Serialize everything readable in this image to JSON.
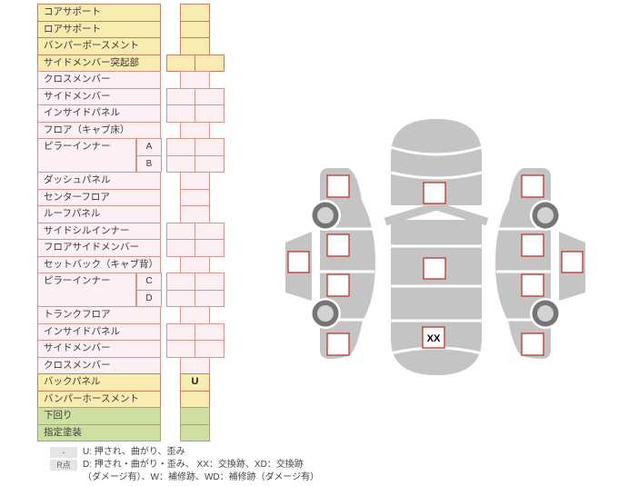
{
  "colors": {
    "row-yellow": "#f8ecb0",
    "row-pink": "#fdf0f2",
    "row-green": "#cfdfa2",
    "border-yellow": "#c57f62",
    "border-pink": "#d6948e",
    "border-green": "#aba578",
    "car-gray": "#c4c4c4",
    "wheel-dark": "#757575",
    "wheel-light": "#d2d2d2",
    "marker-red": "#bf4138"
  },
  "table": {
    "rows": [
      {
        "label": "コアサポート",
        "color": "yellow",
        "cells": "single",
        "value": ""
      },
      {
        "label": "ロアサポート",
        "color": "yellow",
        "cells": "single",
        "value": ""
      },
      {
        "label": "バンパーポースメント",
        "color": "yellow",
        "cells": "single",
        "value": ""
      },
      {
        "label": "サイドメンバー突起部",
        "color": "yellow",
        "cells": "double",
        "value": ""
      },
      {
        "label": "クロスメンバー",
        "color": "pink",
        "cells": "single",
        "value": ""
      },
      {
        "label": "サイドメンバー",
        "color": "pink",
        "cells": "double",
        "value": ""
      },
      {
        "label": "インサイドパネル",
        "color": "pink",
        "cells": "double",
        "value": ""
      },
      {
        "label": "フロア（キャブ床）",
        "color": "pink",
        "cells": "single",
        "value": ""
      },
      {
        "label": "ピラーインナー",
        "sub": "A",
        "span": 2,
        "color": "pink",
        "cells": "double",
        "value": ""
      },
      {
        "sub": "B",
        "color": "pink",
        "cells": "double",
        "value": ""
      },
      {
        "label": "ダッシュパネル",
        "color": "pink",
        "cells": "single",
        "value": ""
      },
      {
        "label": "センターフロア",
        "color": "pink",
        "cells": "single",
        "value": ""
      },
      {
        "label": "ルーフパネル",
        "color": "pink",
        "cells": "single",
        "value": ""
      },
      {
        "label": "サイドシルインナー",
        "color": "pink",
        "cells": "double",
        "value": ""
      },
      {
        "label": "フロアサイドメンバー",
        "color": "pink",
        "cells": "double",
        "value": ""
      },
      {
        "label": "セットバック（キャブ背）",
        "color": "pink",
        "cells": "single",
        "value": ""
      },
      {
        "label": "ピラーインナー",
        "sub": "C",
        "span": 2,
        "color": "pink",
        "cells": "double",
        "value": ""
      },
      {
        "sub": "D",
        "color": "pink",
        "cells": "double",
        "value": ""
      },
      {
        "label": "トランクフロア",
        "color": "pink",
        "cells": "single",
        "value": ""
      },
      {
        "label": "インサイドパネル",
        "color": "pink",
        "cells": "double",
        "value": ""
      },
      {
        "label": "サイドメンバー",
        "color": "pink",
        "cells": "double",
        "value": ""
      },
      {
        "label": "クロスメンバー",
        "color": "pink",
        "cells": "single",
        "value": ""
      },
      {
        "label": "バックパネル",
        "color": "yellow",
        "cells": "single",
        "value": "U"
      },
      {
        "label": "バンパーホースメント",
        "color": "yellow",
        "cells": "single",
        "value": ""
      },
      {
        "label": "下回り",
        "color": "green",
        "cells": "single",
        "value": ""
      },
      {
        "label": "指定塗装",
        "color": "green",
        "cells": "single",
        "value": ""
      }
    ]
  },
  "legend": {
    "line1_badge": "-",
    "line1_text": "U: 押され、曲がり、歪み",
    "line2_badge": "R点",
    "line2_text": "D: 押され・曲がり・歪み、 XX：交換跡、XD：交換跡",
    "line3_text": "（ダメージ有）、W：補修跡、WD：補修跡（ダメージ有）"
  },
  "diagram": {
    "xx_marker": "XX"
  }
}
